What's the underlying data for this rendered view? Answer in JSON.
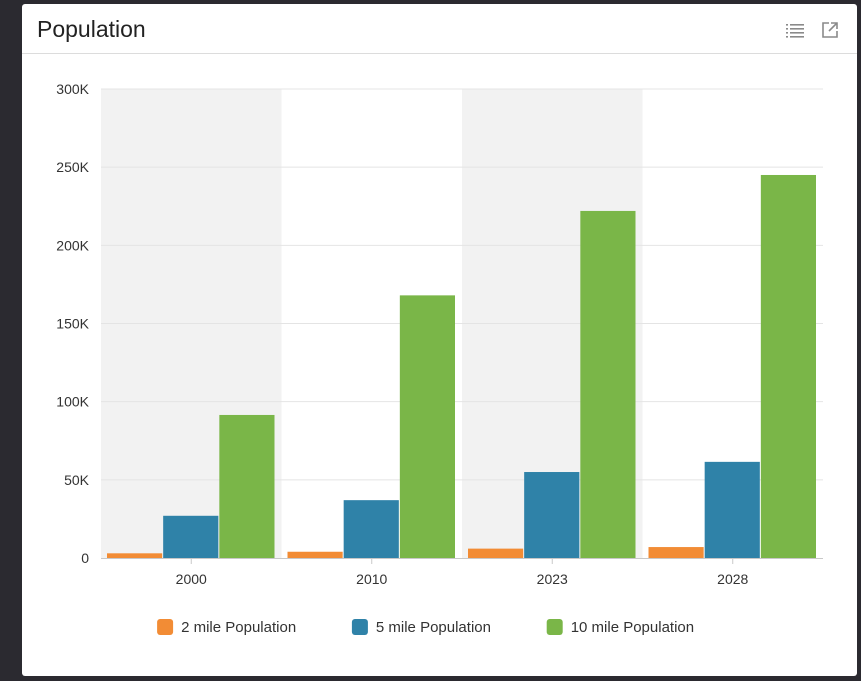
{
  "panel": {
    "title": "Population",
    "icons": [
      "list-icon",
      "external-link-icon"
    ]
  },
  "chart_data": {
    "type": "bar",
    "title": "",
    "xlabel": "",
    "ylabel": "",
    "categories": [
      "2000",
      "2010",
      "2023",
      "2028"
    ],
    "series": [
      {
        "name": "2 mile Population",
        "color": "#f28c35",
        "values": [
          3000,
          4000,
          6000,
          7000
        ]
      },
      {
        "name": "5 mile Population",
        "color": "#2f82a8",
        "values": [
          27000,
          37000,
          55000,
          61500
        ]
      },
      {
        "name": "10 mile Population",
        "color": "#7ab648",
        "values": [
          91500,
          168000,
          222000,
          245000
        ]
      }
    ],
    "ylim": [
      0,
      300000
    ],
    "yticks": [
      0,
      50000,
      100000,
      150000,
      200000,
      250000,
      300000
    ],
    "ytick_labels": [
      "0",
      "50K",
      "100K",
      "150K",
      "200K",
      "250K",
      "300K"
    ],
    "grid": true,
    "alternating_bands": true,
    "legend": "bottom"
  }
}
